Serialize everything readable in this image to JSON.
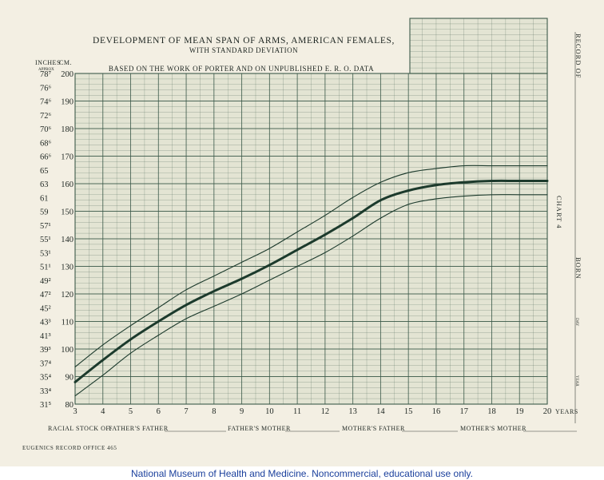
{
  "chart_data": {
    "type": "line",
    "title": "DEVELOPMENT OF MEAN SPAN OF ARMS, AMERICAN FEMALES,",
    "subtitle": "WITH STANDARD DEVIATION",
    "note": "BASED ON THE WORK OF PORTER AND ON UNPUBLISHED E. R. O. DATA",
    "ylabel_left": "INCHES",
    "ylabel_right": "CM.",
    "ylabel_approx": "APPROX",
    "xlabel": "YEARS",
    "xlim": [
      3,
      20
    ],
    "ylim": [
      80,
      200
    ],
    "x_ticks": [
      "3",
      "4",
      "5",
      "6",
      "7",
      "8",
      "9",
      "10",
      "11",
      "12",
      "13",
      "14",
      "15",
      "16",
      "17",
      "18",
      "19",
      "20"
    ],
    "cm_ticks": [
      "80",
      "90",
      "100",
      "110",
      "120",
      "130",
      "140",
      "150",
      "160",
      "170",
      "180",
      "190",
      "200"
    ],
    "inch_ticks": [
      {
        "cm": 80,
        "label": "31⁵"
      },
      {
        "cm": 85,
        "label": "33⁴"
      },
      {
        "cm": 90,
        "label": "35⁴"
      },
      {
        "cm": 95,
        "label": "37⁴"
      },
      {
        "cm": 100,
        "label": "39³"
      },
      {
        "cm": 105,
        "label": "41³"
      },
      {
        "cm": 110,
        "label": "43³"
      },
      {
        "cm": 115,
        "label": "45²"
      },
      {
        "cm": 120,
        "label": "47²"
      },
      {
        "cm": 125,
        "label": "49²"
      },
      {
        "cm": 130,
        "label": "51¹"
      },
      {
        "cm": 135,
        "label": "53¹"
      },
      {
        "cm": 140,
        "label": "55¹"
      },
      {
        "cm": 145,
        "label": "57¹"
      },
      {
        "cm": 150,
        "label": "59"
      },
      {
        "cm": 155,
        "label": "61"
      },
      {
        "cm": 160,
        "label": "63"
      },
      {
        "cm": 165,
        "label": "65"
      },
      {
        "cm": 170,
        "label": "66⁶"
      },
      {
        "cm": 175,
        "label": "68⁶"
      },
      {
        "cm": 180,
        "label": "70⁶"
      },
      {
        "cm": 185,
        "label": "72⁶"
      },
      {
        "cm": 190,
        "label": "74⁶"
      },
      {
        "cm": 195,
        "label": "76⁶"
      },
      {
        "cm": 200,
        "label": "78⁷"
      }
    ],
    "x": [
      3,
      4,
      5,
      6,
      7,
      8,
      9,
      10,
      11,
      12,
      13,
      14,
      15,
      16,
      17,
      18,
      19,
      20
    ],
    "series": [
      {
        "values": [
          88,
          96,
          103.5,
          110,
          116,
          121,
          125.5,
          130.5,
          136,
          141.5,
          147.5,
          154,
          157.5,
          159.5,
          160.5,
          161,
          161,
          161
        ]
      },
      {
        "values": [
          93.5,
          101.5,
          108.5,
          115,
          121.5,
          126.5,
          131.5,
          136.5,
          142.5,
          148.5,
          155,
          160.5,
          164,
          165.5,
          166.5,
          166.5,
          166.5,
          166.5
        ]
      },
      {
        "values": [
          83,
          90.5,
          98.5,
          105,
          111,
          115.5,
          120,
          125,
          130,
          135,
          141,
          147.5,
          152.5,
          154.5,
          155.5,
          156,
          156,
          156
        ]
      }
    ],
    "grid": true
  },
  "footer": {
    "racial_stock_label": "RACIAL STOCK OF:",
    "fields": [
      "FATHER'S FATHER",
      "FATHER'S MOTHER",
      "MOTHER'S FATHER",
      "MOTHER'S MOTHER"
    ],
    "office": "EUGENICS RECORD OFFICE 465"
  },
  "side": {
    "record_of": "RECORD OF",
    "chart_label": "CHART 4",
    "born": "BORN",
    "day": "DAY",
    "year": "YEAR"
  },
  "credit": "National Museum of Health and Medicine. Noncommercial, educational use only."
}
